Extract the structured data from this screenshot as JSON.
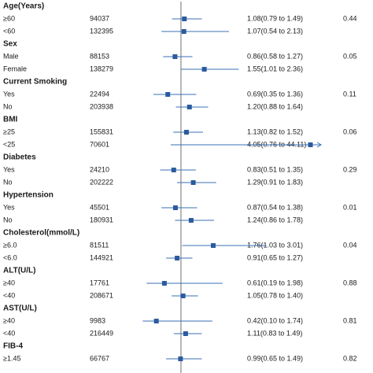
{
  "chart_data": {
    "type": "forest",
    "xlim": [
      0,
      4.3
    ],
    "reference_line": 1,
    "colors": {
      "marker": "#2b5b9e",
      "ci_line": "#3a6fb5",
      "reference": "#888888"
    },
    "groups": [
      {
        "title": "Age(Years)",
        "p": "0.44",
        "rows": [
          {
            "label": "≥60",
            "n": "94037",
            "or": 1.08,
            "lo": 0.79,
            "hi": 1.49,
            "ci_text": "1.08(0.79 to 1.49)"
          },
          {
            "label": "<60",
            "n": "132395",
            "or": 1.07,
            "lo": 0.54,
            "hi": 2.13,
            "ci_text": "1.07(0.54 to 2.13)"
          }
        ]
      },
      {
        "title": "Sex",
        "p": "0.05",
        "rows": [
          {
            "label": "Male",
            "n": "88153",
            "or": 0.86,
            "lo": 0.58,
            "hi": 1.27,
            "ci_text": "0.86(0.58 to 1.27)"
          },
          {
            "label": "Female",
            "n": "138279",
            "or": 1.55,
            "lo": 1.01,
            "hi": 2.36,
            "ci_text": "1.55(1.01 to 2.36)"
          }
        ]
      },
      {
        "title": "Current Smoking",
        "p": "0.11",
        "rows": [
          {
            "label": "Yes",
            "n": "22494",
            "or": 0.69,
            "lo": 0.35,
            "hi": 1.36,
            "ci_text": "0.69(0.35 to 1.36)"
          },
          {
            "label": "No",
            "n": "203938",
            "or": 1.2,
            "lo": 0.88,
            "hi": 1.64,
            "ci_text": "1.20(0.88 to 1.64)"
          }
        ]
      },
      {
        "title": "BMI",
        "p": "0.06",
        "rows": [
          {
            "label": "≥25",
            "n": "155831",
            "or": 1.13,
            "lo": 0.82,
            "hi": 1.52,
            "ci_text": "1.13(0.82 to 1.52)"
          },
          {
            "label": "<25",
            "n": "70601",
            "or": 4.05,
            "lo": 0.76,
            "hi": 44.11,
            "ci_text": "4.05(0.76 to 44.11)"
          }
        ]
      },
      {
        "title": "Diabetes",
        "p": "0.29",
        "rows": [
          {
            "label": "Yes",
            "n": "24210",
            "or": 0.83,
            "lo": 0.51,
            "hi": 1.35,
            "ci_text": "0.83(0.51 to 1.35)"
          },
          {
            "label": "No",
            "n": "202222",
            "or": 1.29,
            "lo": 0.91,
            "hi": 1.83,
            "ci_text": "1.29(0.91 to 1.83)"
          }
        ]
      },
      {
        "title": "Hypertension",
        "p": "0.01",
        "rows": [
          {
            "label": "Yes",
            "n": "45501",
            "or": 0.87,
            "lo": 0.54,
            "hi": 1.38,
            "ci_text": "0.87(0.54 to 1.38)"
          },
          {
            "label": "No",
            "n": "180931",
            "or": 1.24,
            "lo": 0.86,
            "hi": 1.78,
            "ci_text": "1.24(0.86 to 1.78)"
          }
        ]
      },
      {
        "title": "Cholesterol(mmol/L)",
        "p": "0.04",
        "rows": [
          {
            "label": "≥6.0",
            "n": "81511",
            "or": 1.76,
            "lo": 1.03,
            "hi": 3.01,
            "ci_text": "1.76(1.03 to 3.01)"
          },
          {
            "label": "<6.0",
            "n": "144921",
            "or": 0.91,
            "lo": 0.65,
            "hi": 1.27,
            "ci_text": "0.91(0.65 to 1.27)"
          }
        ]
      },
      {
        "title": "ALT(U/L)",
        "p": "0.88",
        "rows": [
          {
            "label": "≥40",
            "n": "17761",
            "or": 0.61,
            "lo": 0.19,
            "hi": 1.98,
            "ci_text": "0.61(0.19 to 1.98)"
          },
          {
            "label": "<40",
            "n": "208671",
            "or": 1.05,
            "lo": 0.78,
            "hi": 1.4,
            "ci_text": "1.05(0.78 to 1.40)"
          }
        ]
      },
      {
        "title": "AST(U/L)",
        "p": "0.81",
        "rows": [
          {
            "label": "≥40",
            "n": "9983",
            "or": 0.42,
            "lo": 0.1,
            "hi": 1.74,
            "ci_text": "0.42(0.10 to 1.74)"
          },
          {
            "label": "<40",
            "n": "216449",
            "or": 1.11,
            "lo": 0.83,
            "hi": 1.49,
            "ci_text": "1.11(0.83 to 1.49)"
          }
        ]
      },
      {
        "title": "FIB-4",
        "p": "0.82",
        "rows": [
          {
            "label": "≥1.45",
            "n": "66767",
            "or": 0.99,
            "lo": 0.65,
            "hi": 1.49,
            "ci_text": "0.99(0.65 to 1.49)"
          }
        ]
      }
    ]
  }
}
